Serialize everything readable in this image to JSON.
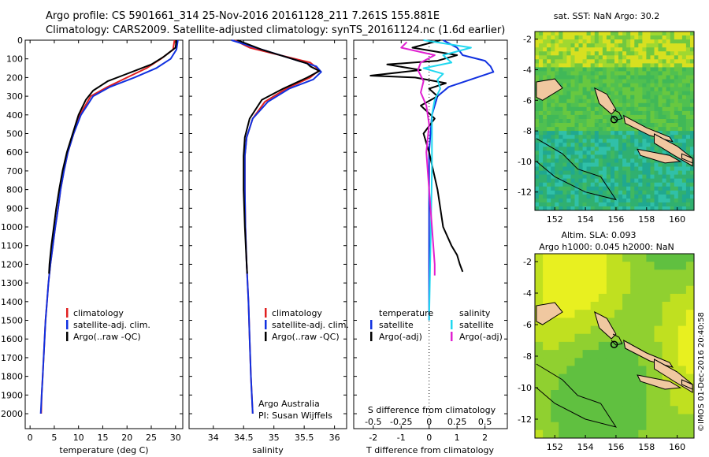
{
  "title_line1": "Argo profile: CS 5901661_314 25-Nov-2016 20161128_211 7.261S 155.881E",
  "title_line2": "Climatology: CARS2009. Satellite-adjusted climatology: synTS_20161124.nc (1.6d earlier)",
  "colors": {
    "climatology": "#e02020",
    "satellite": "#1030e0",
    "argo": "#000000",
    "sal_satellite": "#20d8f0",
    "sal_argo": "#e020d0",
    "land": "#f0c8a0"
  },
  "chart_data": [
    {
      "type": "line",
      "name": "temperature",
      "xlabel": "temperature (deg C)",
      "ylabel": "",
      "xlim": [
        -1,
        31.5
      ],
      "ylim": [
        0,
        2080
      ],
      "y_inverted": true,
      "xticks": [
        0,
        5,
        10,
        15,
        20,
        25,
        30
      ],
      "yticks": [
        0,
        100,
        200,
        300,
        400,
        500,
        600,
        700,
        800,
        900,
        1000,
        1100,
        1200,
        1300,
        1400,
        1500,
        1600,
        1700,
        1800,
        1900,
        2000
      ],
      "legend": [
        "climatology",
        "satellite-adj. clim.",
        "Argo(..raw -QC)"
      ],
      "series": [
        {
          "name": "climatology",
          "color": "#e02020",
          "points": [
            [
              29.8,
              0
            ],
            [
              29.5,
              50
            ],
            [
              27,
              100
            ],
            [
              24,
              150
            ],
            [
              20,
              200
            ],
            [
              16,
              250
            ],
            [
              12.5,
              300
            ],
            [
              10.3,
              400
            ],
            [
              9,
              500
            ],
            [
              7.8,
              600
            ],
            [
              7,
              700
            ],
            [
              6.3,
              800
            ],
            [
              5.8,
              900
            ],
            [
              5.2,
              1000
            ],
            [
              4.7,
              1100
            ],
            [
              4.2,
              1200
            ],
            [
              3.8,
              1300
            ],
            [
              3.5,
              1400
            ],
            [
              3.2,
              1500
            ],
            [
              3,
              1600
            ],
            [
              2.8,
              1700
            ],
            [
              2.6,
              1800
            ],
            [
              2.4,
              1900
            ],
            [
              2.3,
              2000
            ]
          ]
        },
        {
          "name": "satellite",
          "color": "#1030e0",
          "points": [
            [
              30.5,
              0
            ],
            [
              30.2,
              50
            ],
            [
              29,
              100
            ],
            [
              26,
              150
            ],
            [
              21.5,
              200
            ],
            [
              16.5,
              250
            ],
            [
              13,
              300
            ],
            [
              10.5,
              400
            ],
            [
              9,
              500
            ],
            [
              7.8,
              600
            ],
            [
              7,
              700
            ],
            [
              6.3,
              800
            ],
            [
              5.8,
              900
            ],
            [
              5.2,
              1000
            ],
            [
              4.7,
              1100
            ],
            [
              4.2,
              1200
            ],
            [
              3.8,
              1300
            ],
            [
              3.5,
              1400
            ],
            [
              3.2,
              1500
            ],
            [
              3,
              1600
            ],
            [
              2.8,
              1700
            ],
            [
              2.6,
              1800
            ],
            [
              2.4,
              1900
            ],
            [
              2.2,
              2000
            ]
          ]
        },
        {
          "name": "argo",
          "color": "#000000",
          "points": [
            [
              30.2,
              0
            ],
            [
              30,
              40
            ],
            [
              27.5,
              90
            ],
            [
              25,
              130
            ],
            [
              22,
              160
            ],
            [
              19,
              190
            ],
            [
              16,
              220
            ],
            [
              13,
              270
            ],
            [
              11.5,
              320
            ],
            [
              10,
              400
            ],
            [
              8.8,
              500
            ],
            [
              7.6,
              600
            ],
            [
              6.7,
              700
            ],
            [
              6,
              800
            ],
            [
              5.4,
              900
            ],
            [
              4.9,
              1000
            ],
            [
              4.4,
              1100
            ],
            [
              4,
              1200
            ],
            [
              3.9,
              1250
            ]
          ]
        }
      ]
    },
    {
      "type": "line",
      "name": "salinity",
      "xlabel": "salinity",
      "ylabel": "",
      "xlim": [
        33.6,
        36.2
      ],
      "ylim": [
        0,
        2080
      ],
      "y_inverted": true,
      "xticks": [
        34,
        34.5,
        35,
        35.5,
        36
      ],
      "legend": [
        "climatology",
        "satellite-adj. clim.",
        "Argo(..raw -QC)"
      ],
      "annotation": [
        "Argo Australia",
        "PI: Susan Wijffels"
      ],
      "series": [
        {
          "name": "climatology",
          "color": "#e02020",
          "points": [
            [
              34.35,
              0
            ],
            [
              34.6,
              40
            ],
            [
              35.1,
              80
            ],
            [
              35.6,
              120
            ],
            [
              35.75,
              160
            ],
            [
              35.6,
              200
            ],
            [
              35.2,
              260
            ],
            [
              34.85,
              330
            ],
            [
              34.65,
              420
            ],
            [
              34.55,
              520
            ],
            [
              34.52,
              620
            ],
            [
              34.52,
              800
            ],
            [
              34.53,
              1000
            ],
            [
              34.55,
              1200
            ],
            [
              34.58,
              1400
            ],
            [
              34.6,
              1600
            ],
            [
              34.62,
              1800
            ],
            [
              34.65,
              2000
            ]
          ]
        },
        {
          "name": "satellite",
          "color": "#1030e0",
          "points": [
            [
              34.3,
              0
            ],
            [
              34.7,
              40
            ],
            [
              35.2,
              90
            ],
            [
              35.7,
              140
            ],
            [
              35.78,
              170
            ],
            [
              35.65,
              210
            ],
            [
              35.25,
              260
            ],
            [
              34.9,
              330
            ],
            [
              34.65,
              420
            ],
            [
              34.55,
              520
            ],
            [
              34.52,
              620
            ],
            [
              34.52,
              800
            ],
            [
              34.53,
              1000
            ],
            [
              34.55,
              1200
            ],
            [
              34.58,
              1400
            ],
            [
              34.6,
              1600
            ],
            [
              34.62,
              1800
            ],
            [
              34.65,
              2000
            ]
          ]
        },
        {
          "name": "argo",
          "color": "#000000",
          "points": [
            [
              34.4,
              0
            ],
            [
              34.8,
              50
            ],
            [
              35.3,
              100
            ],
            [
              35.55,
              125
            ],
            [
              35.6,
              140
            ],
            [
              35.75,
              165
            ],
            [
              35.55,
              200
            ],
            [
              35.15,
              260
            ],
            [
              34.8,
              320
            ],
            [
              34.6,
              420
            ],
            [
              34.52,
              520
            ],
            [
              34.5,
              620
            ],
            [
              34.5,
              800
            ],
            [
              34.52,
              1000
            ],
            [
              34.55,
              1200
            ],
            [
              34.56,
              1250
            ]
          ]
        }
      ]
    },
    {
      "type": "line",
      "name": "difference",
      "xlabel": "T difference from climatology",
      "xlabel_top": "S difference from climatology",
      "xlim": [
        -2.7,
        2.8
      ],
      "ylim": [
        0,
        2080
      ],
      "y_inverted": true,
      "xticks": [
        -2,
        -1,
        0,
        1,
        2
      ],
      "xticks_top_labels": [
        "-0.5",
        "-0.25",
        "0",
        "0.25",
        "0.5"
      ],
      "xticks_top_positions": [
        -2,
        -1,
        0,
        1,
        2
      ],
      "legend_temperature": {
        "title": "temperature",
        "items": [
          "satellite",
          "Argo(-adj)"
        ]
      },
      "legend_salinity": {
        "title": "salinity",
        "items": [
          "satellite",
          "Argo(-adj)"
        ]
      },
      "series": [
        {
          "name": "T satellite",
          "color": "#1030e0",
          "points": [
            [
              0.5,
              0
            ],
            [
              1,
              40
            ],
            [
              1.2,
              80
            ],
            [
              2,
              110
            ],
            [
              2.2,
              140
            ],
            [
              2.3,
              170
            ],
            [
              1.5,
              210
            ],
            [
              0.7,
              250
            ],
            [
              0.3,
              300
            ],
            [
              0.1,
              400
            ],
            [
              0,
              600
            ],
            [
              0,
              1000
            ],
            [
              0,
              1500
            ]
          ]
        },
        {
          "name": "T Argo",
          "color": "#000000",
          "points": [
            [
              0.4,
              0
            ],
            [
              -0.6,
              40
            ],
            [
              1,
              80
            ],
            [
              0.3,
              110
            ],
            [
              -1.5,
              130
            ],
            [
              -0.3,
              160
            ],
            [
              -2.1,
              190
            ],
            [
              -0.5,
              200
            ],
            [
              0.6,
              230
            ],
            [
              0,
              260
            ],
            [
              0.3,
              300
            ],
            [
              -0.3,
              350
            ],
            [
              0.2,
              420
            ],
            [
              -0.2,
              500
            ],
            [
              0,
              600
            ],
            [
              0.3,
              800
            ],
            [
              0.5,
              1000
            ],
            [
              0.8,
              1100
            ],
            [
              1,
              1150
            ],
            [
              1.1,
              1200
            ],
            [
              1.2,
              1240
            ]
          ]
        },
        {
          "name": "S satellite",
          "color": "#20d8f0",
          "points": [
            [
              -0.2,
              0
            ],
            [
              1.5,
              40
            ],
            [
              0.5,
              80
            ],
            [
              0.8,
              120
            ],
            [
              -0.2,
              150
            ],
            [
              0.5,
              180
            ],
            [
              0.3,
              210
            ],
            [
              0.4,
              260
            ],
            [
              0.2,
              320
            ],
            [
              0.1,
              400
            ],
            [
              0.1,
              700
            ],
            [
              0,
              1500
            ]
          ]
        },
        {
          "name": "S Argo",
          "color": "#e020d0",
          "points": [
            [
              -0.8,
              10
            ],
            [
              -1,
              40
            ],
            [
              0.2,
              80
            ],
            [
              -0.3,
              120
            ],
            [
              -0.4,
              160
            ],
            [
              -0.2,
              220
            ],
            [
              -0.3,
              280
            ],
            [
              -0.1,
              350
            ],
            [
              0,
              450
            ],
            [
              -0.1,
              600
            ],
            [
              0,
              800
            ],
            [
              0.1,
              1000
            ],
            [
              0.2,
              1200
            ],
            [
              0.2,
              1260
            ]
          ]
        }
      ]
    },
    {
      "type": "heatmap",
      "name": "sst_map",
      "title": "sat. SST: NaN Argo: 30.2",
      "xlim": [
        150.7,
        161.1
      ],
      "ylim": [
        -13.2,
        -1.5
      ],
      "xticks": [
        152,
        154,
        156,
        158,
        160
      ],
      "yticks": [
        -2,
        -4,
        -6,
        -8,
        -10,
        -12
      ],
      "marker": [
        155.881,
        -7.261
      ]
    },
    {
      "type": "heatmap",
      "name": "sla_map",
      "title_line1": "Altim. SLA: 0.093",
      "title_line2": "Argo h1000: 0.045 h2000: NaN",
      "xlim": [
        150.7,
        161.1
      ],
      "ylim": [
        -13.2,
        -1.5
      ],
      "xticks": [
        152,
        154,
        156,
        158,
        160
      ],
      "yticks": [
        -2,
        -4,
        -6,
        -8,
        -10,
        -12
      ],
      "marker": [
        155.881,
        -7.261
      ]
    }
  ],
  "side_label": "©IMOS 01-Dec-2016 20:40:58"
}
